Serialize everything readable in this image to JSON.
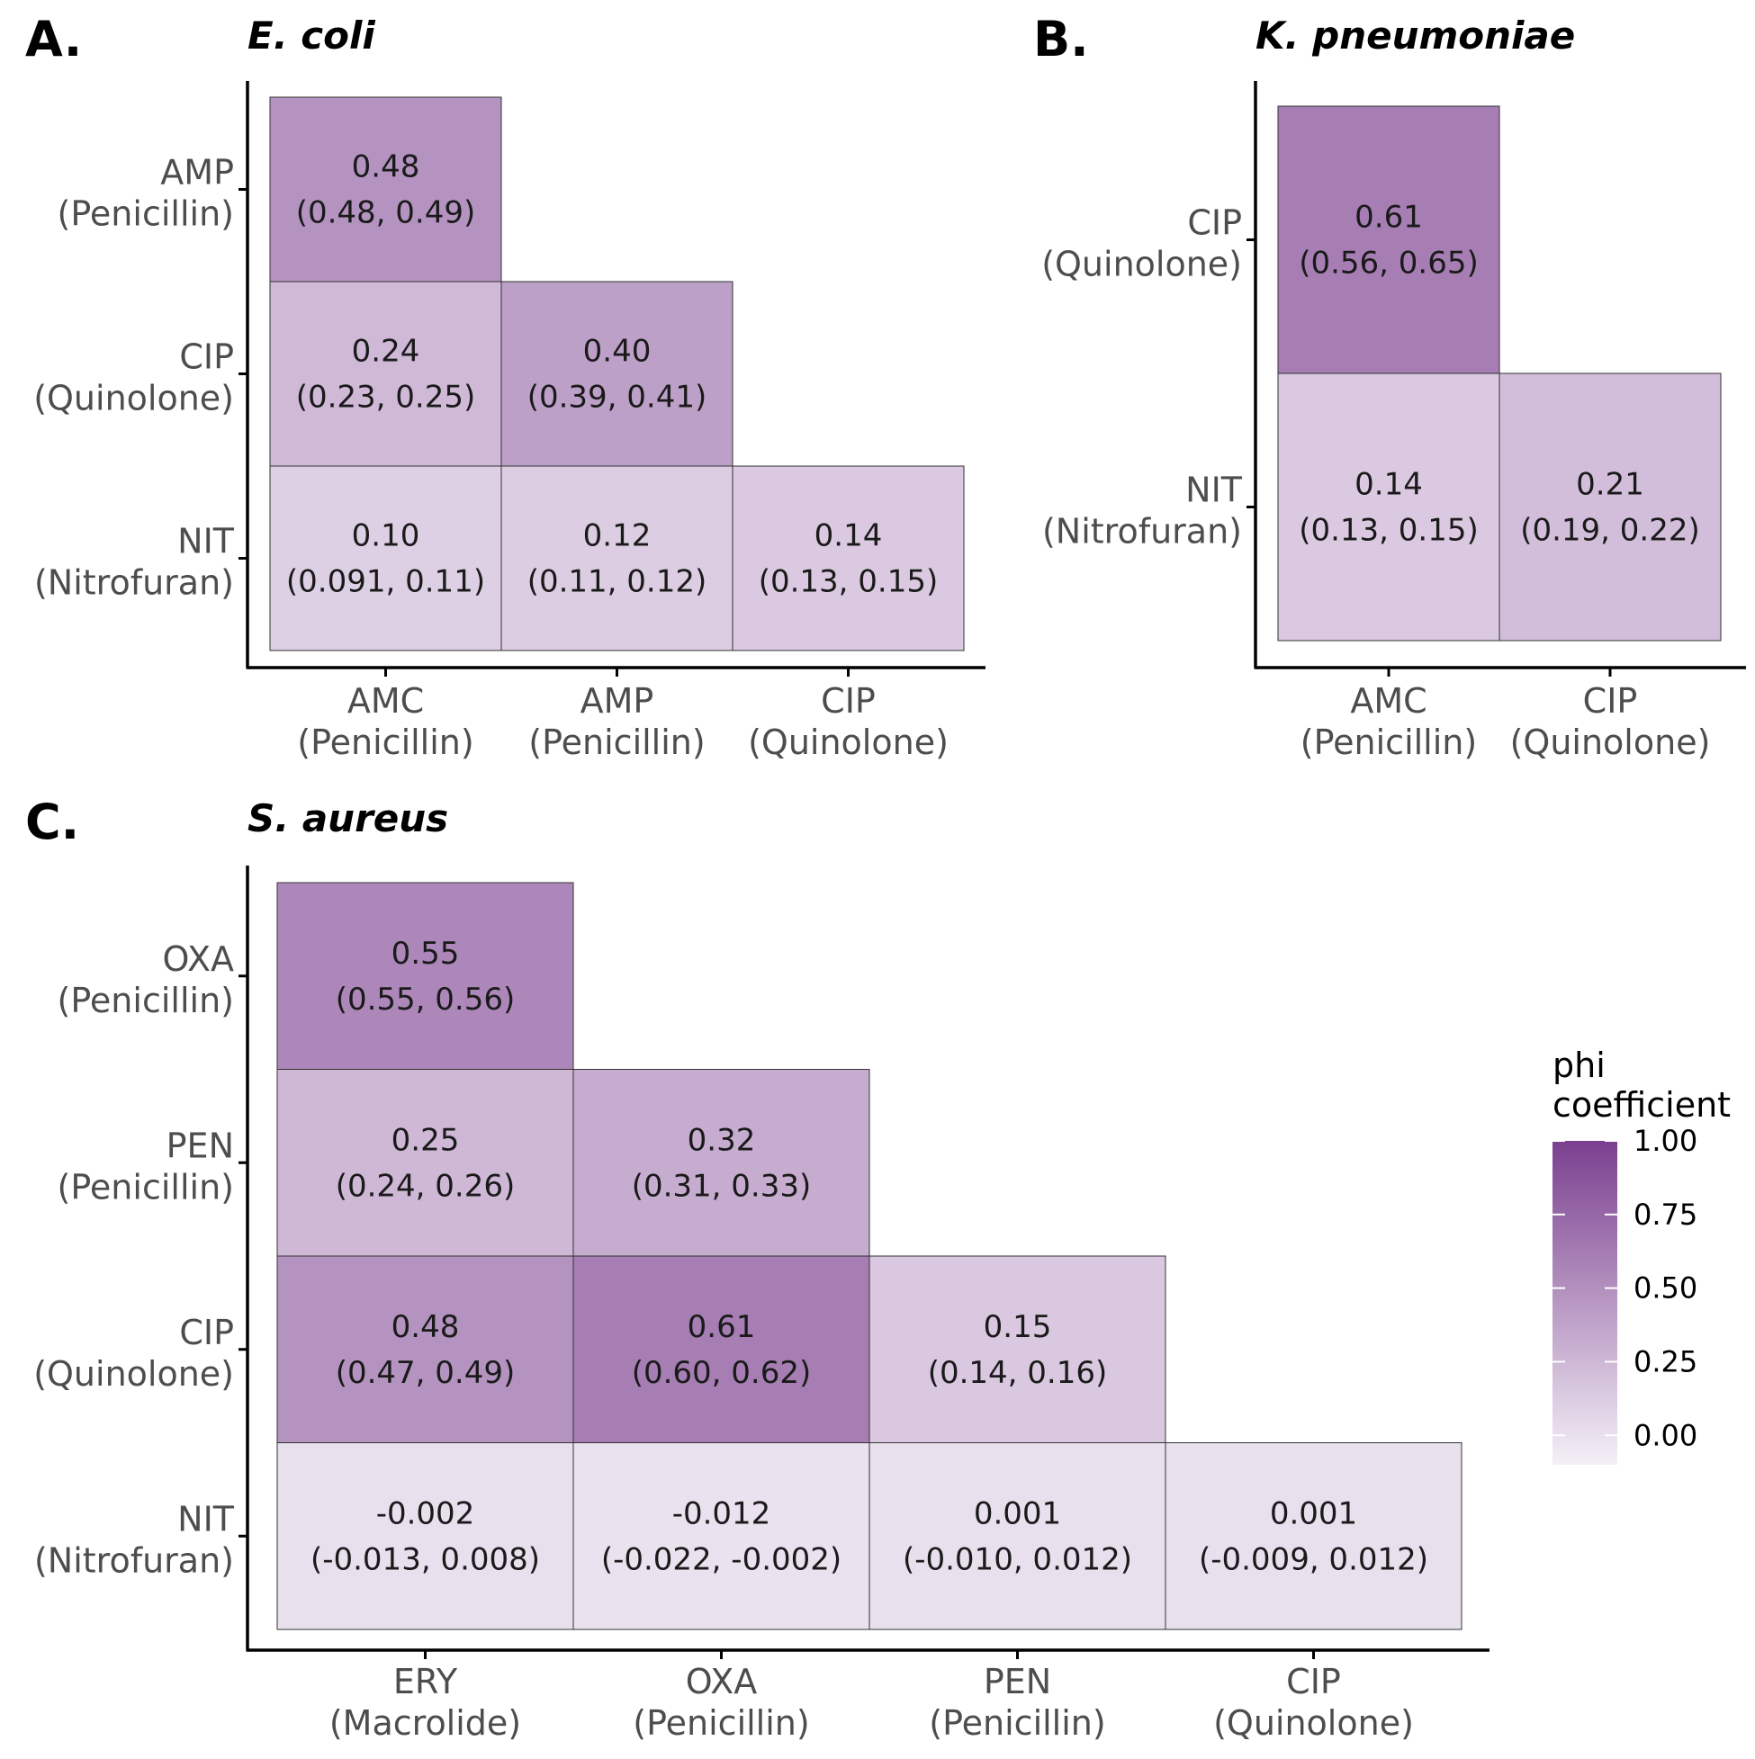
{
  "chart_data": [
    {
      "type": "heatmap",
      "panel": "A.",
      "title": "E. coli",
      "x_categories": [
        [
          "AMC",
          "(Penicillin)"
        ],
        [
          "AMP",
          "(Penicillin)"
        ],
        [
          "CIP",
          "(Quinolone)"
        ]
      ],
      "y_categories": [
        [
          "AMP",
          "(Penicillin)"
        ],
        [
          "CIP",
          "(Quinolone)"
        ],
        [
          "NIT",
          "(Nitrofuran)"
        ]
      ],
      "cells": [
        {
          "x": 0,
          "y": 0,
          "value": 0.48,
          "label": "0.48",
          "ci": "(0.48, 0.49)"
        },
        {
          "x": 0,
          "y": 1,
          "value": 0.24,
          "label": "0.24",
          "ci": "(0.23, 0.25)"
        },
        {
          "x": 1,
          "y": 1,
          "value": 0.4,
          "label": "0.40",
          "ci": "(0.39, 0.41)"
        },
        {
          "x": 0,
          "y": 2,
          "value": 0.1,
          "label": "0.10",
          "ci": "(0.091, 0.11)"
        },
        {
          "x": 1,
          "y": 2,
          "value": 0.12,
          "label": "0.12",
          "ci": "(0.11, 0.12)"
        },
        {
          "x": 2,
          "y": 2,
          "value": 0.14,
          "label": "0.14",
          "ci": "(0.13, 0.15)"
        }
      ]
    },
    {
      "type": "heatmap",
      "panel": "B.",
      "title": "K. pneumoniae",
      "x_categories": [
        [
          "AMC",
          "(Penicillin)"
        ],
        [
          "CIP",
          "(Quinolone)"
        ]
      ],
      "y_categories": [
        [
          "CIP",
          "(Quinolone)"
        ],
        [
          "NIT",
          "(Nitrofuran)"
        ]
      ],
      "cells": [
        {
          "x": 0,
          "y": 0,
          "value": 0.61,
          "label": "0.61",
          "ci": "(0.56, 0.65)"
        },
        {
          "x": 0,
          "y": 1,
          "value": 0.14,
          "label": "0.14",
          "ci": "(0.13, 0.15)"
        },
        {
          "x": 1,
          "y": 1,
          "value": 0.21,
          "label": "0.21",
          "ci": "(0.19, 0.22)"
        }
      ]
    },
    {
      "type": "heatmap",
      "panel": "C.",
      "title": "S. aureus",
      "x_categories": [
        [
          "ERY",
          "(Macrolide)"
        ],
        [
          "OXA",
          "(Penicillin)"
        ],
        [
          "PEN",
          "(Penicillin)"
        ],
        [
          "CIP",
          "(Quinolone)"
        ]
      ],
      "y_categories": [
        [
          "OXA",
          "(Penicillin)"
        ],
        [
          "PEN",
          "(Penicillin)"
        ],
        [
          "CIP",
          "(Quinolone)"
        ],
        [
          "NIT",
          "(Nitrofuran)"
        ]
      ],
      "cells": [
        {
          "x": 0,
          "y": 0,
          "value": 0.55,
          "label": "0.55",
          "ci": "(0.55, 0.56)"
        },
        {
          "x": 0,
          "y": 1,
          "value": 0.25,
          "label": "0.25",
          "ci": "(0.24, 0.26)"
        },
        {
          "x": 1,
          "y": 1,
          "value": 0.32,
          "label": "0.32",
          "ci": "(0.31, 0.33)"
        },
        {
          "x": 0,
          "y": 2,
          "value": 0.48,
          "label": "0.48",
          "ci": "(0.47, 0.49)"
        },
        {
          "x": 1,
          "y": 2,
          "value": 0.61,
          "label": "0.61",
          "ci": "(0.60, 0.62)"
        },
        {
          "x": 2,
          "y": 2,
          "value": 0.15,
          "label": "0.15",
          "ci": "(0.14, 0.16)"
        },
        {
          "x": 0,
          "y": 3,
          "value": -0.002,
          "label": "-0.002",
          "ci": "(-0.013, 0.008)"
        },
        {
          "x": 1,
          "y": 3,
          "value": -0.012,
          "label": "-0.012",
          "ci": "(-0.022, -0.002)"
        },
        {
          "x": 2,
          "y": 3,
          "value": 0.001,
          "label": "0.001",
          "ci": "(-0.010, 0.012)"
        },
        {
          "x": 3,
          "y": 3,
          "value": 0.001,
          "label": "0.001",
          "ci": "(-0.009, 0.012)"
        }
      ]
    }
  ],
  "legend": {
    "title_lines": [
      "phi",
      "coefficient"
    ],
    "range": [
      -0.1,
      1.0
    ],
    "ticks": [
      {
        "value": 1.0,
        "label": "1.00"
      },
      {
        "value": 0.75,
        "label": "0.75"
      },
      {
        "value": 0.5,
        "label": "0.50"
      },
      {
        "value": 0.25,
        "label": "0.25"
      },
      {
        "value": 0.0,
        "label": "0.00"
      }
    ],
    "color_low": "#f4f0f7",
    "color_high": "#7b3f8f"
  },
  "colors": {
    "cell_border": "#333333",
    "axis": "#000000",
    "tick_text": "#4d4d4d"
  }
}
